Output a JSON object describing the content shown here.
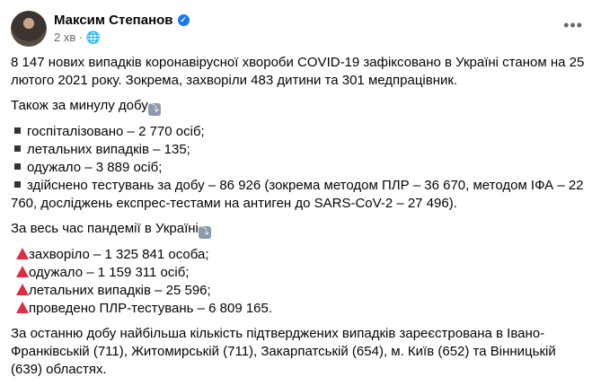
{
  "author": {
    "name": "Максим Степанов",
    "time": "2 хв",
    "separator": "·"
  },
  "icons": {
    "verified": "verified-badge-icon",
    "privacy": "globe-icon",
    "more": "more-horizontal-icon",
    "arrow": "arrow-emoji-icon",
    "bullet": "black-square-icon",
    "triangle": "red-triangle-icon"
  },
  "post": {
    "intro": "8 147 нових випадків коронавірусної хвороби COVID-19 зафіксовано в Україні станом на 25 лютого 2021 року. Зокрема, захворіли 483 дитини та 301 медпрацівник.",
    "daily_heading": "Також за минулу добу",
    "daily": [
      "госпіталізовано – 2 770 осіб;",
      "летальних випадків – 135;",
      "одужало – 3 889 осіб;",
      "здійснено тестувань за добу – 86 926 (зокрема методом ПЛР – 36 670, методом ІФА – 22 760, досліджень експрес-тестами на антиген до SARS-CoV-2 – 27 496)."
    ],
    "total_heading": "За весь час пандемії в Україні",
    "total": [
      "захворіло – 1 325 841 особа;",
      "одужало – 1 159 311 осіб;",
      "летальних випадків – 25 596;",
      "проведено ПЛР-тестувань – 6 809 165."
    ],
    "regions": "За останню добу найбільша кількість підтверджених випадків зареєстрована в Івано-Франківській (711), Житомирській (711), Закарпатській (654), м. Київ (652) та Вінницькій (639) областях."
  }
}
